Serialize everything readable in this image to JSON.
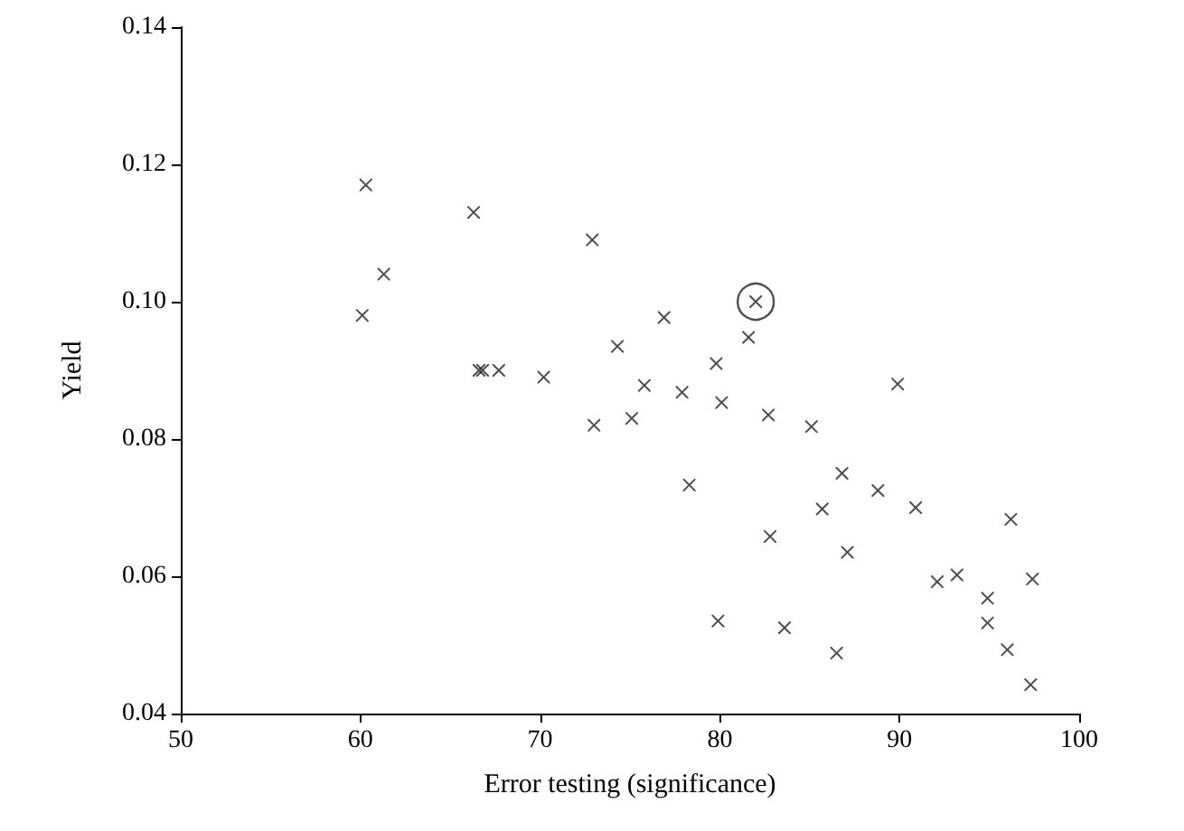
{
  "chart_data": {
    "type": "scatter",
    "xlabel": "Error testing (significance)",
    "ylabel": "Yield",
    "xlim": [
      50,
      100
    ],
    "xticks": [
      50,
      60,
      70,
      80,
      90,
      100
    ],
    "ylim": [
      0.04,
      0.14
    ],
    "yticks": [
      {
        "value": 0.04,
        "label": "0.04"
      },
      {
        "value": 0.06,
        "label": "0.06"
      },
      {
        "value": 0.08,
        "label": "0.08"
      },
      {
        "value": 0.1,
        "label": "0.10"
      },
      {
        "value": 0.12,
        "label": "0.12"
      },
      {
        "value": 0.14,
        "label": "0.14"
      }
    ],
    "grid": false,
    "series": [
      {
        "color": "#222222",
        "marker": "cross",
        "x": [
          60.3,
          60.1,
          61.3,
          66.3,
          66.6,
          66.8,
          67.7,
          70.2,
          72.9,
          73.0,
          74.3,
          75.1,
          75.8,
          76.9,
          77.9,
          78.3,
          79.8,
          80.1,
          79.9,
          81.6,
          82.0,
          82.7,
          82.8,
          83.6,
          85.1,
          85.7,
          86.8,
          86.5,
          87.1,
          88.8,
          89.9,
          90.9,
          92.1,
          93.2,
          94.9,
          94.9,
          96.2,
          96.0,
          97.4,
          97.3
        ],
        "values": [
          0.117,
          0.098,
          0.104,
          0.113,
          0.09,
          0.09,
          0.09,
          0.089,
          0.109,
          0.082,
          0.0935,
          0.083,
          0.0878,
          0.0977,
          0.0868,
          0.0733,
          0.091,
          0.0853,
          0.0535,
          0.0948,
          0.1,
          0.0835,
          0.0658,
          0.0525,
          0.0818,
          0.0698,
          0.075,
          0.0488,
          0.0635,
          0.0725,
          0.088,
          0.07,
          0.0592,
          0.0602,
          0.0568,
          0.0532,
          0.0683,
          0.0493,
          0.0596,
          0.0442
        ]
      },
      {
        "color": "#222222",
        "marker": "circle",
        "x": [
          82.0
        ],
        "values": [
          0.1
        ]
      }
    ]
  }
}
